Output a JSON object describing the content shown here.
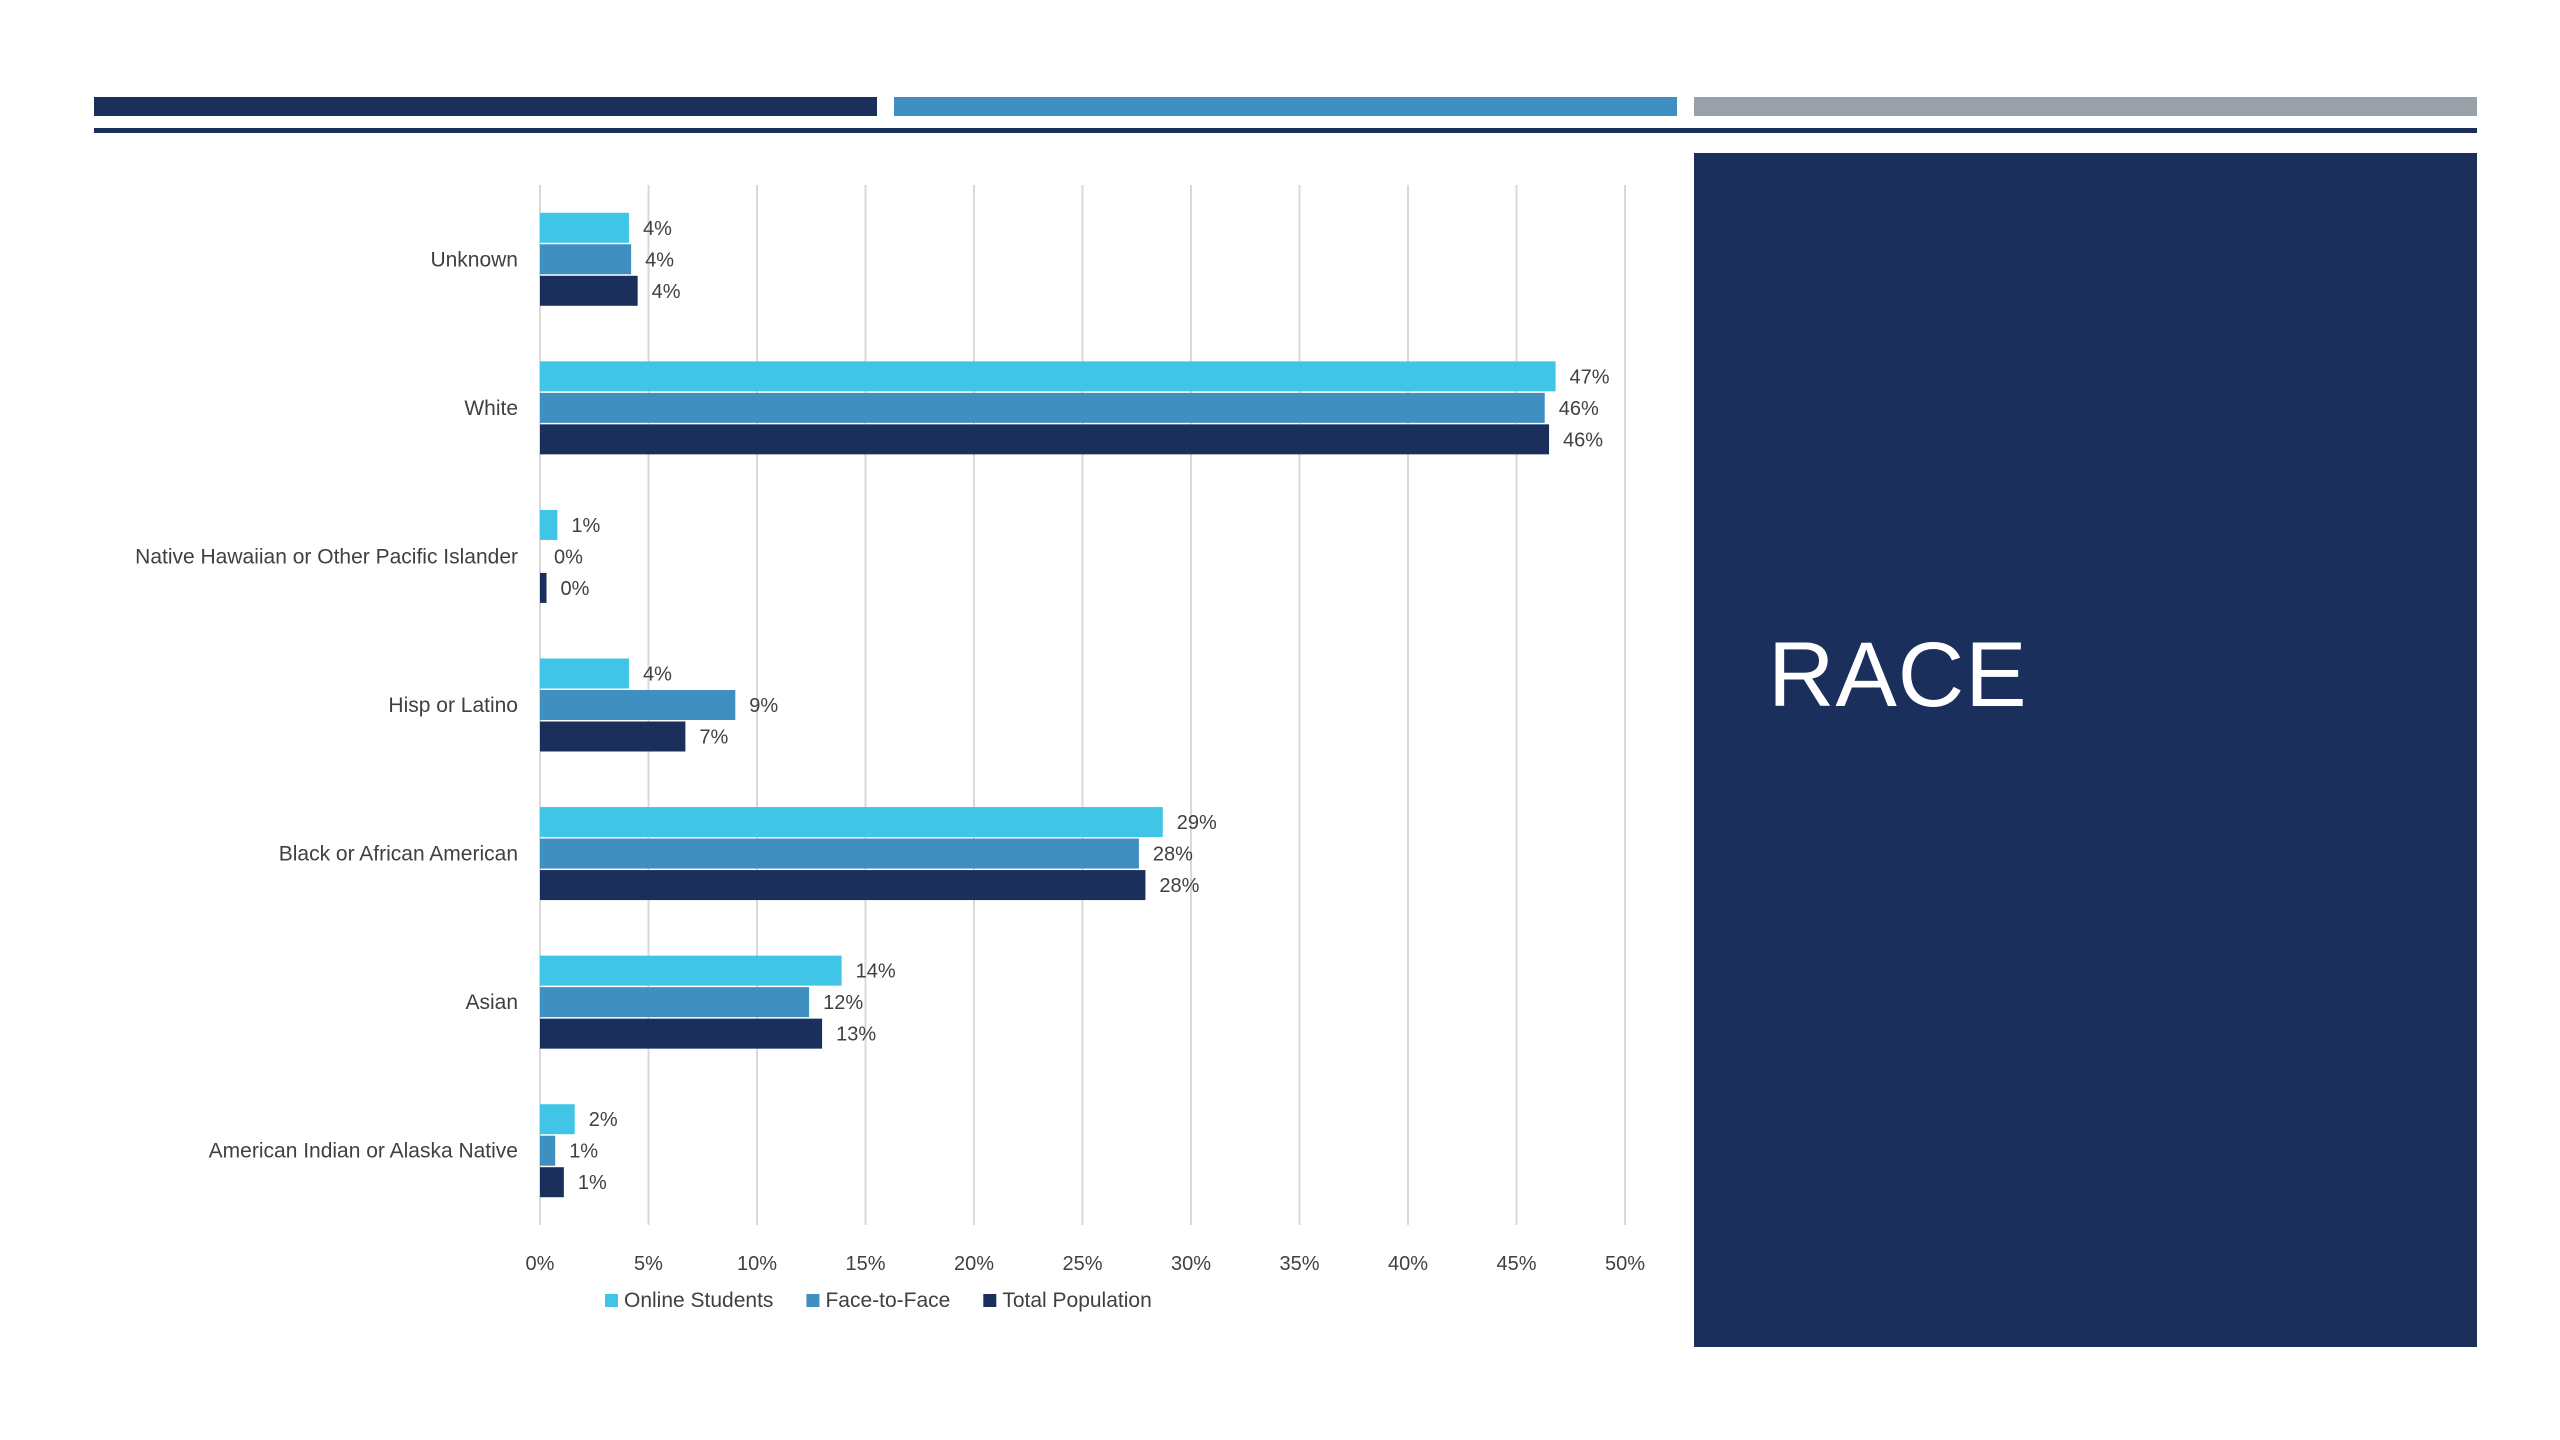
{
  "slide": {
    "title": "RACE"
  },
  "colors": {
    "online": "#41c5e7",
    "face": "#3f8fc0",
    "total": "#1b2f5c",
    "grid": "#d9d9d9",
    "text": "#404040"
  },
  "chart_data": {
    "type": "bar",
    "orientation": "horizontal",
    "title": "",
    "xlabel": "",
    "ylabel": "",
    "xlim": [
      0,
      0.5
    ],
    "grid": true,
    "legend_position": "bottom",
    "categories": [
      "Unknown",
      "White",
      "Native Hawaiian or Other Pacific Islander",
      "Hisp or Latino",
      "Black or African American",
      "Asian",
      "American Indian or Alaska Native"
    ],
    "x_ticks": [
      "0%",
      "5%",
      "10%",
      "15%",
      "20%",
      "25%",
      "30%",
      "35%",
      "40%",
      "45%",
      "50%"
    ],
    "series": [
      {
        "name": "Online Students",
        "color_key": "online",
        "values": [
          0.041,
          0.468,
          0.008,
          0.041,
          0.287,
          0.139,
          0.016
        ],
        "labels": [
          "4%",
          "47%",
          "1%",
          "4%",
          "29%",
          "14%",
          "2%"
        ]
      },
      {
        "name": "Face-to-Face",
        "color_key": "face",
        "values": [
          0.042,
          0.463,
          0.0,
          0.09,
          0.276,
          0.124,
          0.007
        ],
        "labels": [
          "4%",
          "46%",
          "0%",
          "9%",
          "28%",
          "12%",
          "1%"
        ]
      },
      {
        "name": "Total Population",
        "color_key": "total",
        "values": [
          0.045,
          0.465,
          0.003,
          0.067,
          0.279,
          0.13,
          0.011
        ],
        "labels": [
          "4%",
          "46%",
          "0%",
          "7%",
          "28%",
          "13%",
          "1%"
        ]
      }
    ]
  }
}
